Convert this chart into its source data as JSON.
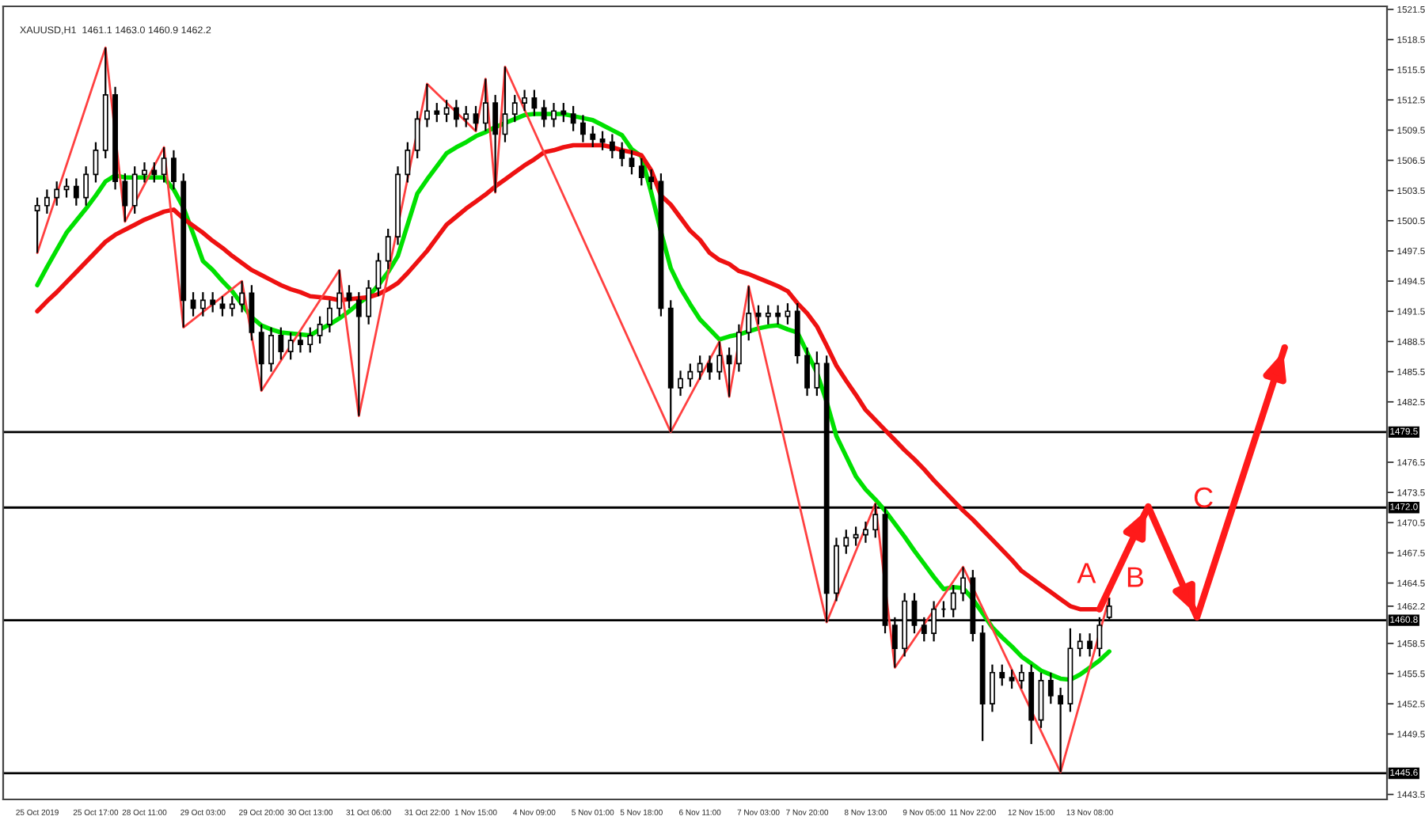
{
  "chart_data": {
    "type": "candlestick",
    "title": "XAUUSD,H1  1461.1 1463.0 1460.9 1462.2",
    "color": "#000000",
    "categories": [
      "25 Oct 2019",
      null,
      null,
      null,
      null,
      null,
      "25 Oct 17:00",
      null,
      null,
      null,
      null,
      "28 Oct 11:00",
      null,
      null,
      null,
      null,
      null,
      "29 Oct 03:00",
      null,
      null,
      null,
      null,
      null,
      "29 Oct 20:00",
      null,
      null,
      null,
      null,
      "30 Oct 13:00",
      null,
      null,
      null,
      null,
      null,
      "31 Oct 06:00",
      null,
      null,
      null,
      null,
      null,
      "31 Oct 22:00",
      null,
      null,
      null,
      null,
      "1 Nov 15:00",
      null,
      null,
      null,
      null,
      null,
      "4 Nov 09:00",
      null,
      null,
      null,
      null,
      null,
      "5 Nov 01:00",
      null,
      null,
      null,
      null,
      "5 Nov 18:00",
      null,
      null,
      null,
      null,
      null,
      "6 Nov 11:00",
      null,
      null,
      null,
      null,
      null,
      "7 Nov 03:00",
      null,
      null,
      null,
      null,
      "7 Nov 20:00",
      null,
      null,
      null,
      null,
      null,
      "8 Nov 13:00",
      null,
      null,
      null,
      null,
      null,
      "9 Nov 05:00",
      null,
      null,
      null,
      null,
      "11 Nov 22:00",
      null,
      null,
      null,
      null,
      null,
      "12 Nov 15:00",
      null,
      null,
      null,
      null,
      null,
      "13 Nov 08:00",
      null,
      null,
      null,
      null,
      null,
      null,
      null,
      null,
      null,
      null,
      null,
      null,
      null,
      null,
      null,
      null,
      null,
      null,
      null,
      null,
      null,
      null,
      null,
      null,
      null,
      null,
      null,
      null,
      null,
      null
    ],
    "ohlc": [
      [
        1501.5,
        1502.8,
        1497.3,
        1502.0
      ],
      [
        1502.0,
        1503.6,
        1501.2,
        1502.8
      ],
      [
        1502.8,
        1504.4,
        1502.0,
        1503.6
      ],
      [
        1503.6,
        1504.7,
        1502.8,
        1503.9
      ],
      [
        1503.9,
        1504.7,
        1502.0,
        1502.8
      ],
      [
        1502.8,
        1505.9,
        1502.0,
        1505.1
      ],
      [
        1505.1,
        1508.3,
        1504.3,
        1507.5
      ],
      [
        1507.5,
        1517.7,
        1506.7,
        1513.0
      ],
      [
        1513.0,
        1513.8,
        1503.6,
        1504.4
      ],
      [
        1504.4,
        1505.2,
        1500.4,
        1502.0
      ],
      [
        1502.0,
        1505.9,
        1501.2,
        1505.1
      ],
      [
        1505.1,
        1506.3,
        1504.3,
        1505.5
      ],
      [
        1505.5,
        1506.3,
        1504.3,
        1505.1
      ],
      [
        1505.1,
        1507.8,
        1504.3,
        1506.7
      ],
      [
        1506.7,
        1507.5,
        1503.6,
        1504.4
      ],
      [
        1504.4,
        1505.2,
        1489.9,
        1492.6
      ],
      [
        1492.6,
        1493.4,
        1491.0,
        1491.8
      ],
      [
        1491.8,
        1493.4,
        1491.0,
        1492.6
      ],
      [
        1492.6,
        1493.4,
        1491.4,
        1492.2
      ],
      [
        1492.2,
        1493.0,
        1491.0,
        1491.8
      ],
      [
        1491.8,
        1493.0,
        1491.0,
        1492.2
      ],
      [
        1492.2,
        1494.5,
        1491.4,
        1493.3
      ],
      [
        1493.3,
        1494.1,
        1488.6,
        1489.4
      ],
      [
        1489.4,
        1490.2,
        1483.6,
        1486.3
      ],
      [
        1486.3,
        1489.9,
        1485.5,
        1489.1
      ],
      [
        1489.1,
        1489.9,
        1486.7,
        1487.5
      ],
      [
        1487.5,
        1489.4,
        1486.7,
        1488.6
      ],
      [
        1488.6,
        1489.4,
        1487.4,
        1488.2
      ],
      [
        1488.2,
        1489.9,
        1487.4,
        1489.1
      ],
      [
        1489.1,
        1491.0,
        1488.3,
        1490.2
      ],
      [
        1490.2,
        1492.6,
        1489.4,
        1491.8
      ],
      [
        1491.8,
        1495.6,
        1491.0,
        1493.3
      ],
      [
        1493.3,
        1494.1,
        1491.8,
        1492.6
      ],
      [
        1492.6,
        1493.4,
        1481.1,
        1491.0
      ],
      [
        1491.0,
        1494.6,
        1490.2,
        1493.8
      ],
      [
        1493.8,
        1497.3,
        1493.0,
        1496.5
      ],
      [
        1496.5,
        1499.7,
        1495.7,
        1498.9
      ],
      [
        1498.9,
        1505.9,
        1498.1,
        1505.1
      ],
      [
        1505.1,
        1508.3,
        1504.3,
        1507.5
      ],
      [
        1507.5,
        1511.4,
        1506.7,
        1510.6
      ],
      [
        1510.6,
        1514.1,
        1509.8,
        1511.4
      ],
      [
        1511.4,
        1512.2,
        1510.3,
        1511.1
      ],
      [
        1511.1,
        1512.5,
        1510.3,
        1511.7
      ],
      [
        1511.7,
        1512.5,
        1509.8,
        1510.6
      ],
      [
        1510.6,
        1511.9,
        1509.8,
        1511.1
      ],
      [
        1511.1,
        1511.9,
        1509.4,
        1510.2
      ],
      [
        1510.2,
        1514.6,
        1509.4,
        1512.2
      ],
      [
        1512.2,
        1513.0,
        1503.3,
        1509.1
      ],
      [
        1509.1,
        1515.8,
        1508.3,
        1511.1
      ],
      [
        1511.1,
        1513.0,
        1510.3,
        1512.2
      ],
      [
        1512.2,
        1513.5,
        1511.4,
        1512.7
      ],
      [
        1512.7,
        1513.5,
        1510.9,
        1511.7
      ],
      [
        1511.7,
        1512.5,
        1509.8,
        1510.6
      ],
      [
        1510.6,
        1512.2,
        1509.8,
        1511.4
      ],
      [
        1511.4,
        1512.2,
        1510.3,
        1511.1
      ],
      [
        1511.1,
        1511.9,
        1509.4,
        1510.2
      ],
      [
        1510.2,
        1511.0,
        1508.3,
        1509.1
      ],
      [
        1509.1,
        1509.9,
        1507.8,
        1508.6
      ],
      [
        1508.6,
        1509.4,
        1507.5,
        1508.3
      ],
      [
        1508.3,
        1509.1,
        1506.7,
        1507.5
      ],
      [
        1507.5,
        1508.3,
        1505.9,
        1506.7
      ],
      [
        1506.7,
        1507.5,
        1505.1,
        1505.9
      ],
      [
        1505.9,
        1506.7,
        1504.0,
        1504.8
      ],
      [
        1504.8,
        1505.6,
        1503.6,
        1504.4
      ],
      [
        1504.4,
        1505.2,
        1491.0,
        1491.8
      ],
      [
        1491.8,
        1492.6,
        1479.5,
        1483.9
      ],
      [
        1483.9,
        1485.6,
        1483.1,
        1484.8
      ],
      [
        1484.8,
        1486.3,
        1484.0,
        1485.5
      ],
      [
        1485.5,
        1487.1,
        1484.7,
        1486.3
      ],
      [
        1486.3,
        1487.1,
        1484.7,
        1485.5
      ],
      [
        1485.5,
        1488.5,
        1484.7,
        1487.1
      ],
      [
        1487.1,
        1487.9,
        1483.0,
        1486.3
      ],
      [
        1486.3,
        1490.2,
        1485.5,
        1489.4
      ],
      [
        1489.4,
        1494.0,
        1488.6,
        1491.3
      ],
      [
        1491.3,
        1492.1,
        1490.2,
        1491.0
      ],
      [
        1491.0,
        1492.1,
        1490.2,
        1491.3
      ],
      [
        1491.3,
        1492.1,
        1490.2,
        1491.0
      ],
      [
        1491.0,
        1492.3,
        1490.2,
        1491.5
      ],
      [
        1491.5,
        1492.3,
        1486.3,
        1487.1
      ],
      [
        1487.1,
        1487.9,
        1483.1,
        1483.9
      ],
      [
        1483.9,
        1487.5,
        1483.1,
        1486.3
      ],
      [
        1486.3,
        1487.1,
        1460.6,
        1463.5
      ],
      [
        1463.5,
        1469.0,
        1462.7,
        1468.2
      ],
      [
        1468.2,
        1469.8,
        1467.4,
        1469.0
      ],
      [
        1469.0,
        1470.1,
        1468.2,
        1469.3
      ],
      [
        1469.3,
        1470.6,
        1468.5,
        1469.8
      ],
      [
        1469.8,
        1472.4,
        1469.0,
        1471.3
      ],
      [
        1471.3,
        1472.1,
        1459.5,
        1460.3
      ],
      [
        1460.3,
        1461.1,
        1456.1,
        1458.0
      ],
      [
        1458.0,
        1463.5,
        1457.2,
        1462.7
      ],
      [
        1462.7,
        1463.5,
        1459.5,
        1460.3
      ],
      [
        1460.3,
        1461.1,
        1458.7,
        1459.5
      ],
      [
        1459.5,
        1462.7,
        1458.7,
        1461.9
      ],
      [
        1461.9,
        1462.7,
        1461.1,
        1461.9
      ],
      [
        1461.9,
        1464.3,
        1461.1,
        1463.5
      ],
      [
        1463.5,
        1466.1,
        1462.7,
        1465.0
      ],
      [
        1465.0,
        1465.8,
        1458.7,
        1459.5
      ],
      [
        1459.5,
        1460.3,
        1448.8,
        1452.5
      ],
      [
        1452.5,
        1456.4,
        1451.7,
        1455.6
      ],
      [
        1455.6,
        1456.4,
        1454.3,
        1455.1
      ],
      [
        1455.1,
        1455.9,
        1454.0,
        1454.8
      ],
      [
        1454.8,
        1456.4,
        1454.0,
        1455.6
      ],
      [
        1455.6,
        1456.4,
        1448.5,
        1450.9
      ],
      [
        1450.9,
        1455.6,
        1450.1,
        1454.8
      ],
      [
        1454.8,
        1455.6,
        1452.5,
        1453.3
      ],
      [
        1453.3,
        1454.1,
        1445.7,
        1452.5
      ],
      [
        1452.5,
        1460.0,
        1451.7,
        1458.0
      ],
      [
        1458.0,
        1459.5,
        1457.2,
        1458.7
      ],
      [
        1458.7,
        1459.5,
        1457.2,
        1458.0
      ],
      [
        1458.0,
        1461.1,
        1457.2,
        1460.3
      ],
      [
        1461.1,
        1463.0,
        1460.9,
        1462.2
      ],
      null,
      null,
      null,
      null,
      null,
      null,
      null,
      null,
      null,
      null,
      null,
      null,
      null,
      null,
      null,
      null,
      null,
      null,
      null,
      null,
      null,
      null,
      null,
      null,
      null,
      null,
      null,
      null
    ],
    "series": [
      {
        "type": "line",
        "color": "#00e000",
        "values": [
          1494.1,
          1495.9,
          1497.6,
          1499.3,
          1500.5,
          1501.7,
          1503.0,
          1504.4,
          1505.0,
          1504.8,
          1504.8,
          1504.8,
          1504.8,
          1504.8,
          1503.6,
          1501.8,
          1499.2,
          1496.5,
          1495.6,
          1494.5,
          1493.5,
          1492.2,
          1490.9,
          1490.1,
          1489.7,
          1489.4,
          1489.3,
          1489.2,
          1489.1,
          1489.7,
          1490.2,
          1490.8,
          1491.5,
          1492.3,
          1493.0,
          1494.1,
          1495.4,
          1497.0,
          1500.1,
          1503.2,
          1504.6,
          1505.9,
          1507.2,
          1507.8,
          1508.3,
          1508.9,
          1509.3,
          1509.8,
          1510.2,
          1510.6,
          1511.0,
          1511.1,
          1511.1,
          1511.1,
          1511.1,
          1510.9,
          1510.7,
          1510.5,
          1510.0,
          1509.5,
          1509.0,
          1507.6,
          1506.9,
          1503.3,
          1499.4,
          1495.8,
          1493.8,
          1492.2,
          1490.7,
          1489.7,
          1488.7,
          1489.0,
          1489.2,
          1489.5,
          1489.8,
          1490.0,
          1490.1,
          1489.7,
          1489.4,
          1487.4,
          1485.4,
          1482.5,
          1479.1,
          1477.1,
          1475.1,
          1473.8,
          1472.8,
          1471.7,
          1470.4,
          1469.1,
          1467.7,
          1466.4,
          1465.1,
          1463.9,
          1464.1,
          1464.0,
          1462.9,
          1461.5,
          1460.1,
          1459.1,
          1458.2,
          1457.2,
          1456.5,
          1455.8,
          1455.4,
          1455.0,
          1454.9,
          1455.4,
          1456.1,
          1456.8,
          1457.7,
          null,
          null,
          null,
          null,
          null,
          null,
          null,
          null,
          null,
          null,
          null,
          null,
          null,
          null,
          null,
          null,
          null,
          null,
          null,
          null,
          null,
          null,
          null,
          null,
          null,
          null,
          null,
          null
        ]
      },
      {
        "type": "line",
        "color": "#ee1111",
        "values": [
          1491.5,
          1492.5,
          1493.4,
          1494.4,
          1495.4,
          1496.4,
          1497.4,
          1498.4,
          1499.1,
          1499.6,
          1500.1,
          1500.6,
          1501.0,
          1501.4,
          1501.6,
          1500.7,
          1500.0,
          1499.3,
          1498.5,
          1497.8,
          1497.0,
          1496.3,
          1495.6,
          1495.1,
          1494.6,
          1494.1,
          1493.7,
          1493.4,
          1493.0,
          1492.9,
          1492.8,
          1492.6,
          1492.7,
          1492.8,
          1492.9,
          1493.2,
          1493.7,
          1494.3,
          1495.3,
          1496.4,
          1497.5,
          1498.8,
          1500.1,
          1500.9,
          1501.7,
          1502.4,
          1503.1,
          1503.9,
          1504.6,
          1505.3,
          1506.0,
          1506.6,
          1507.3,
          1507.5,
          1507.8,
          1508.0,
          1508.0,
          1508.0,
          1508.0,
          1507.8,
          1507.5,
          1507.3,
          1507.0,
          1505.5,
          1503.0,
          1502.1,
          1500.8,
          1499.5,
          1498.6,
          1497.3,
          1496.6,
          1496.2,
          1495.5,
          1495.2,
          1494.8,
          1494.4,
          1494.0,
          1493.5,
          1492.3,
          1491.3,
          1490.0,
          1488.1,
          1486.1,
          1484.6,
          1483.2,
          1481.7,
          1480.7,
          1479.7,
          1478.7,
          1477.7,
          1476.8,
          1475.8,
          1474.7,
          1473.7,
          1472.7,
          1471.7,
          1470.8,
          1469.8,
          1468.8,
          1467.8,
          1466.8,
          1465.7,
          1465.0,
          1464.3,
          1463.6,
          1462.9,
          1462.2,
          1461.9,
          1461.9,
          1461.9,
          null,
          null,
          null,
          null,
          null,
          null,
          null,
          null,
          null,
          null,
          null,
          null,
          null,
          null,
          null,
          null,
          null,
          null,
          null,
          null,
          null,
          null,
          null,
          null,
          null,
          null,
          null,
          null,
          null
        ]
      },
      {
        "type": "line",
        "color": "#ff4040",
        "values": [
          1497.3,
          null,
          null,
          null,
          null,
          null,
          null,
          1517.7,
          null,
          1500.4,
          null,
          null,
          null,
          1507.8,
          null,
          1489.9,
          null,
          null,
          null,
          null,
          null,
          1494.5,
          null,
          1483.6,
          null,
          null,
          null,
          null,
          null,
          null,
          null,
          1495.6,
          null,
          1481.1,
          null,
          null,
          null,
          null,
          null,
          null,
          1514.1,
          null,
          null,
          null,
          null,
          1509.4,
          1514.6,
          1503.3,
          1515.8,
          null,
          null,
          null,
          null,
          null,
          null,
          null,
          null,
          null,
          null,
          null,
          null,
          null,
          null,
          null,
          null,
          1479.5,
          null,
          null,
          null,
          null,
          1488.5,
          1483.0,
          null,
          1494.0,
          null,
          null,
          null,
          null,
          null,
          null,
          null,
          1460.6,
          null,
          null,
          null,
          null,
          1472.4,
          null,
          1456.1,
          null,
          null,
          null,
          null,
          null,
          null,
          1466.1,
          null,
          null,
          null,
          null,
          null,
          null,
          null,
          null,
          null,
          1445.7,
          null,
          null,
          null,
          null,
          1463.0,
          null,
          null,
          null,
          null,
          null,
          null,
          null,
          null,
          null,
          null,
          null,
          null,
          null,
          null,
          null,
          null,
          null,
          null,
          null,
          null,
          null,
          null,
          null,
          null,
          null,
          null,
          null,
          null
        ]
      },
      {
        "type": "line",
        "color": "#ff1a1a",
        "values": [
          null,
          null,
          null,
          null,
          null,
          null,
          null,
          null,
          null,
          null,
          null,
          null,
          null,
          null,
          null,
          null,
          null,
          null,
          null,
          null,
          null,
          null,
          null,
          null,
          null,
          null,
          null,
          null,
          null,
          null,
          null,
          null,
          null,
          null,
          null,
          null,
          null,
          null,
          null,
          null,
          null,
          null,
          null,
          null,
          null,
          null,
          null,
          null,
          null,
          null,
          null,
          null,
          null,
          null,
          null,
          null,
          null,
          null,
          null,
          null,
          null,
          null,
          null,
          null,
          null,
          null,
          null,
          null,
          null,
          null,
          null,
          null,
          null,
          null,
          null,
          null,
          null,
          null,
          null,
          null,
          null,
          null,
          null,
          null,
          null,
          null,
          null,
          null,
          null,
          null,
          null,
          null,
          null,
          null,
          null,
          null,
          null,
          null,
          null,
          null,
          null,
          null,
          null,
          null,
          null,
          null,
          null,
          null,
          null,
          1461.9,
          null,
          null,
          null,
          null,
          1472.1,
          null,
          null,
          null,
          null,
          1461.1,
          null,
          null,
          null,
          null,
          null,
          null,
          null,
          null,
          1487.9,
          null,
          null,
          null,
          null,
          null,
          null,
          null,
          null,
          null,
          null
        ]
      }
    ],
    "annotations": [
      "A",
      "B",
      "C"
    ],
    "ref_lines": [
      {
        "axis": "y",
        "value": 1479.5,
        "label": "1479.5",
        "color": "#000000"
      },
      {
        "axis": "y",
        "value": 1472.0,
        "label": "1472.0",
        "color": "#000000"
      },
      {
        "axis": "y",
        "value": 1460.8,
        "label": "1460.8",
        "color": "#000000"
      },
      {
        "axis": "y",
        "value": 1445.6,
        "label": "1445.6",
        "color": "#000000"
      }
    ],
    "ylim": [
      1443.0,
      1521.8
    ],
    "yticks": [
      1443.5,
      1449.5,
      1452.5,
      1455.5,
      1458.5,
      1462.2,
      1464.5,
      1467.5,
      1470.5,
      1473.5,
      1476.5,
      1482.5,
      1485.5,
      1488.5,
      1491.5,
      1494.5,
      1497.5,
      1500.5,
      1503.5,
      1506.5,
      1509.5,
      1512.5,
      1515.5,
      1518.5,
      1521.5
    ],
    "grid": false,
    "legend": false
  }
}
